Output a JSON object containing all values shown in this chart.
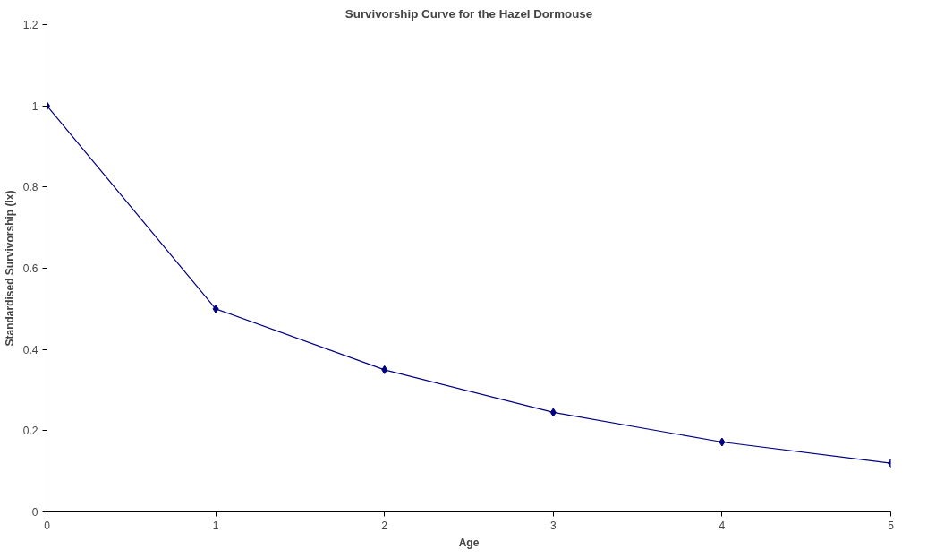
{
  "chart_data": {
    "type": "line",
    "title": "Survivorship Curve for the Hazel Dormouse",
    "xlabel": "Age",
    "ylabel": "Standardised Survivorship (lx)",
    "x": [
      0,
      1,
      2,
      3,
      4,
      5
    ],
    "series": [
      {
        "color": "#000080",
        "values": [
          1,
          0.5,
          0.35,
          0.245,
          0.172,
          0.12
        ]
      }
    ],
    "xlim": [
      0,
      5
    ],
    "xticks": [
      0,
      1,
      2,
      3,
      4,
      5
    ],
    "ylim": [
      0,
      1.2
    ],
    "yticks": [
      0,
      0.2,
      0.4,
      0.6,
      0.8,
      1,
      1.2
    ],
    "grid": false,
    "marker": "diamond",
    "line_style": "solid"
  }
}
